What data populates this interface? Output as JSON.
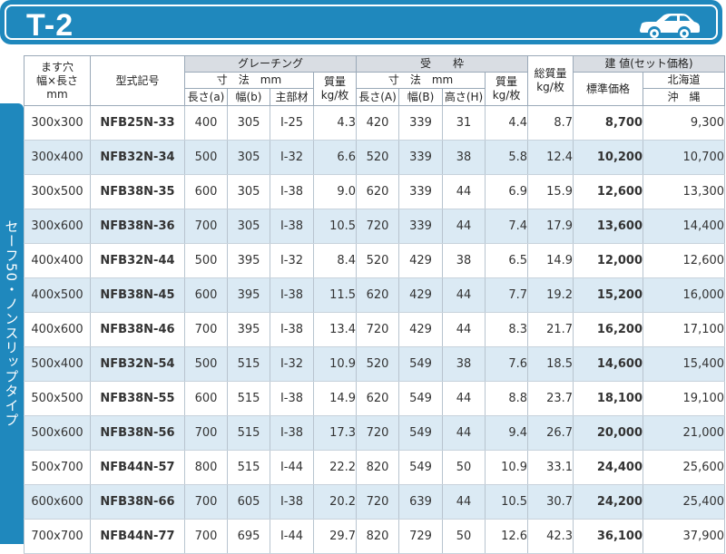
{
  "header": {
    "title": "T-2",
    "icon": "car-icon",
    "color": "#1f88bd"
  },
  "side_label": "セーフ50・ノンスリップタイプ",
  "columns": {
    "opening_l1": "ます穴",
    "opening_l2": "幅×長さ",
    "opening_l3": "mm",
    "model": "型式記号",
    "grating": "グレーチング",
    "grating_dim": "寸　法　mm",
    "grating_weight_l1": "質量",
    "grating_weight_l2": "kg/枚",
    "g_length": "長さ(a)",
    "g_width": "幅(b)",
    "g_main": "主部材",
    "frame": "受　　枠",
    "frame_dim": "寸　法　mm",
    "frame_weight_l1": "質量",
    "frame_weight_l2": "kg/枚",
    "f_length": "長さ(A)",
    "f_width": "幅(B)",
    "f_height": "高さ(H)",
    "total_l1": "総質量",
    "total_l2": "kg/枚",
    "price": "建 値(セット価格)",
    "standard_price": "標準価格",
    "hokkaido": "北海道",
    "okinawa": "沖　縄"
  },
  "rows": [
    {
      "opening": "300x300",
      "model": "NFB25N-33",
      "ga": "400",
      "gb": "305",
      "gm": "I-25",
      "gw": "4.3",
      "fa": "420",
      "fb": "339",
      "fh": "31",
      "fw": "4.4",
      "tw": "8.7",
      "price": "8,700",
      "hok": "9,300"
    },
    {
      "opening": "300x400",
      "model": "NFB32N-34",
      "ga": "500",
      "gb": "305",
      "gm": "I-32",
      "gw": "6.6",
      "fa": "520",
      "fb": "339",
      "fh": "38",
      "fw": "5.8",
      "tw": "12.4",
      "price": "10,200",
      "hok": "10,700"
    },
    {
      "opening": "300x500",
      "model": "NFB38N-35",
      "ga": "600",
      "gb": "305",
      "gm": "I-38",
      "gw": "9.0",
      "fa": "620",
      "fb": "339",
      "fh": "44",
      "fw": "6.9",
      "tw": "15.9",
      "price": "12,600",
      "hok": "13,300"
    },
    {
      "opening": "300x600",
      "model": "NFB38N-36",
      "ga": "700",
      "gb": "305",
      "gm": "I-38",
      "gw": "10.5",
      "fa": "720",
      "fb": "339",
      "fh": "44",
      "fw": "7.4",
      "tw": "17.9",
      "price": "13,600",
      "hok": "14,400"
    },
    {
      "opening": "400x400",
      "model": "NFB32N-44",
      "ga": "500",
      "gb": "395",
      "gm": "I-32",
      "gw": "8.4",
      "fa": "520",
      "fb": "429",
      "fh": "38",
      "fw": "6.5",
      "tw": "14.9",
      "price": "12,000",
      "hok": "12,600"
    },
    {
      "opening": "400x500",
      "model": "NFB38N-45",
      "ga": "600",
      "gb": "395",
      "gm": "I-38",
      "gw": "11.5",
      "fa": "620",
      "fb": "429",
      "fh": "44",
      "fw": "7.7",
      "tw": "19.2",
      "price": "15,200",
      "hok": "16,000"
    },
    {
      "opening": "400x600",
      "model": "NFB38N-46",
      "ga": "700",
      "gb": "395",
      "gm": "I-38",
      "gw": "13.4",
      "fa": "720",
      "fb": "429",
      "fh": "44",
      "fw": "8.3",
      "tw": "21.7",
      "price": "16,200",
      "hok": "17,100"
    },
    {
      "opening": "500x400",
      "model": "NFB32N-54",
      "ga": "500",
      "gb": "515",
      "gm": "I-32",
      "gw": "10.9",
      "fa": "520",
      "fb": "549",
      "fh": "38",
      "fw": "7.6",
      "tw": "18.5",
      "price": "14,600",
      "hok": "15,400"
    },
    {
      "opening": "500x500",
      "model": "NFB38N-55",
      "ga": "600",
      "gb": "515",
      "gm": "I-38",
      "gw": "14.9",
      "fa": "620",
      "fb": "549",
      "fh": "44",
      "fw": "8.8",
      "tw": "23.7",
      "price": "18,100",
      "hok": "19,100"
    },
    {
      "opening": "500x600",
      "model": "NFB38N-56",
      "ga": "700",
      "gb": "515",
      "gm": "I-38",
      "gw": "17.3",
      "fa": "720",
      "fb": "549",
      "fh": "44",
      "fw": "9.4",
      "tw": "26.7",
      "price": "20,000",
      "hok": "21,000"
    },
    {
      "opening": "500x700",
      "model": "NFB44N-57",
      "ga": "800",
      "gb": "515",
      "gm": "I-44",
      "gw": "22.2",
      "fa": "820",
      "fb": "549",
      "fh": "50",
      "fw": "10.9",
      "tw": "33.1",
      "price": "24,400",
      "hok": "25,600"
    },
    {
      "opening": "600x600",
      "model": "NFB38N-66",
      "ga": "700",
      "gb": "605",
      "gm": "I-38",
      "gw": "20.2",
      "fa": "720",
      "fb": "639",
      "fh": "44",
      "fw": "10.5",
      "tw": "30.7",
      "price": "24,200",
      "hok": "25,400"
    },
    {
      "opening": "700x700",
      "model": "NFB44N-77",
      "ga": "700",
      "gb": "695",
      "gm": "I-44",
      "gw": "29.7",
      "fa": "820",
      "fb": "729",
      "fh": "50",
      "fw": "12.6",
      "tw": "42.3",
      "price": "36,100",
      "hok": "37,900"
    }
  ]
}
